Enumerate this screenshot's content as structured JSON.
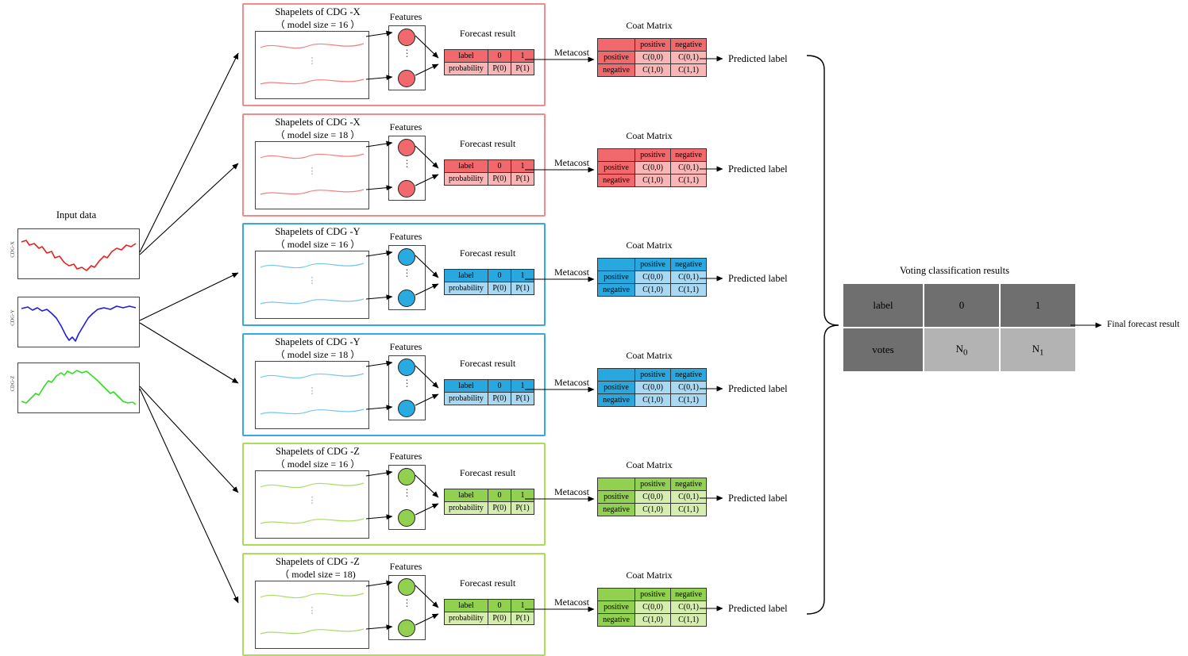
{
  "input": {
    "title": "Input data",
    "plots": [
      {
        "label": "CDG-X",
        "colors": {
          "curve": "#e8211d"
        }
      },
      {
        "label": "CDG-Y",
        "colors": {
          "curve": "#1f1fd6"
        }
      },
      {
        "label": "CDG-Z",
        "colors": {
          "curve": "#2ee01e"
        }
      }
    ]
  },
  "common": {
    "features_label": "Features",
    "forecast_label": "Forecast result",
    "metacost_label": "Metacost",
    "coat_matrix_label": "Coat Matrix",
    "predicted_label": "Predicted label",
    "dots": "⋮",
    "forecast_table": [
      [
        "label",
        "0",
        "1"
      ],
      [
        "probability",
        "P(0)",
        "P(1)"
      ]
    ],
    "coat_table": [
      [
        "",
        "positive",
        "negative"
      ],
      [
        "positive",
        "C(0,0)",
        "C(0,1)"
      ],
      [
        "negative",
        "C(1,0)",
        "C(1,1)"
      ]
    ]
  },
  "branches": [
    {
      "title": "Shapelets of CDG -X",
      "subtitle": "（ model size = 16 ）",
      "colors": {
        "border": "#f28b8b",
        "dark": "#f2696d",
        "light": "#f8b6b6",
        "node": "#f2696d",
        "curve": "#f57f7f"
      }
    },
    {
      "title": "Shapelets of CDG -X",
      "subtitle": "（ model size = 18 ）",
      "colors": {
        "border": "#f28b8b",
        "dark": "#f2696d",
        "light": "#f8b6b6",
        "node": "#f2696d",
        "curve": "#f57f7f"
      }
    },
    {
      "title": "Shapelets of CDG -Y",
      "subtitle": "（ model size = 16 ）",
      "colors": {
        "border": "#35aae2",
        "dark": "#29a8e0",
        "light": "#a9d8f2",
        "node": "#29abe2",
        "curve": "#74c7ee"
      }
    },
    {
      "title": "Shapelets of CDG -Y",
      "subtitle": "（ model size = 18 ）",
      "colors": {
        "border": "#35aae2",
        "dark": "#29a8e0",
        "light": "#a9d8f2",
        "node": "#29abe2",
        "curve": "#74c7ee"
      }
    },
    {
      "title": "Shapelets of CDG -Z",
      "subtitle": "（ model size = 16 ）",
      "colors": {
        "border": "#aadf55",
        "dark": "#92d050",
        "light": "#d5edae",
        "node": "#92d050",
        "curve": "#a8dd62"
      }
    },
    {
      "title": "Shapelets of CDG -Z",
      "subtitle": "（  model size = 18)",
      "colors": {
        "border": "#aadf55",
        "dark": "#92d050",
        "light": "#d5edae",
        "node": "#92d050",
        "curve": "#a8dd62"
      }
    }
  ],
  "voting": {
    "title": "Voting classification results",
    "header": [
      "label",
      "0",
      "1"
    ],
    "votes_label": "votes",
    "counts": [
      {
        "base": "N",
        "sub": "0"
      },
      {
        "base": "N",
        "sub": "1"
      }
    ],
    "colors": {
      "dark": "#6f6f6f",
      "light": "#b3b3b3"
    }
  },
  "final_label": "Final forecast result"
}
